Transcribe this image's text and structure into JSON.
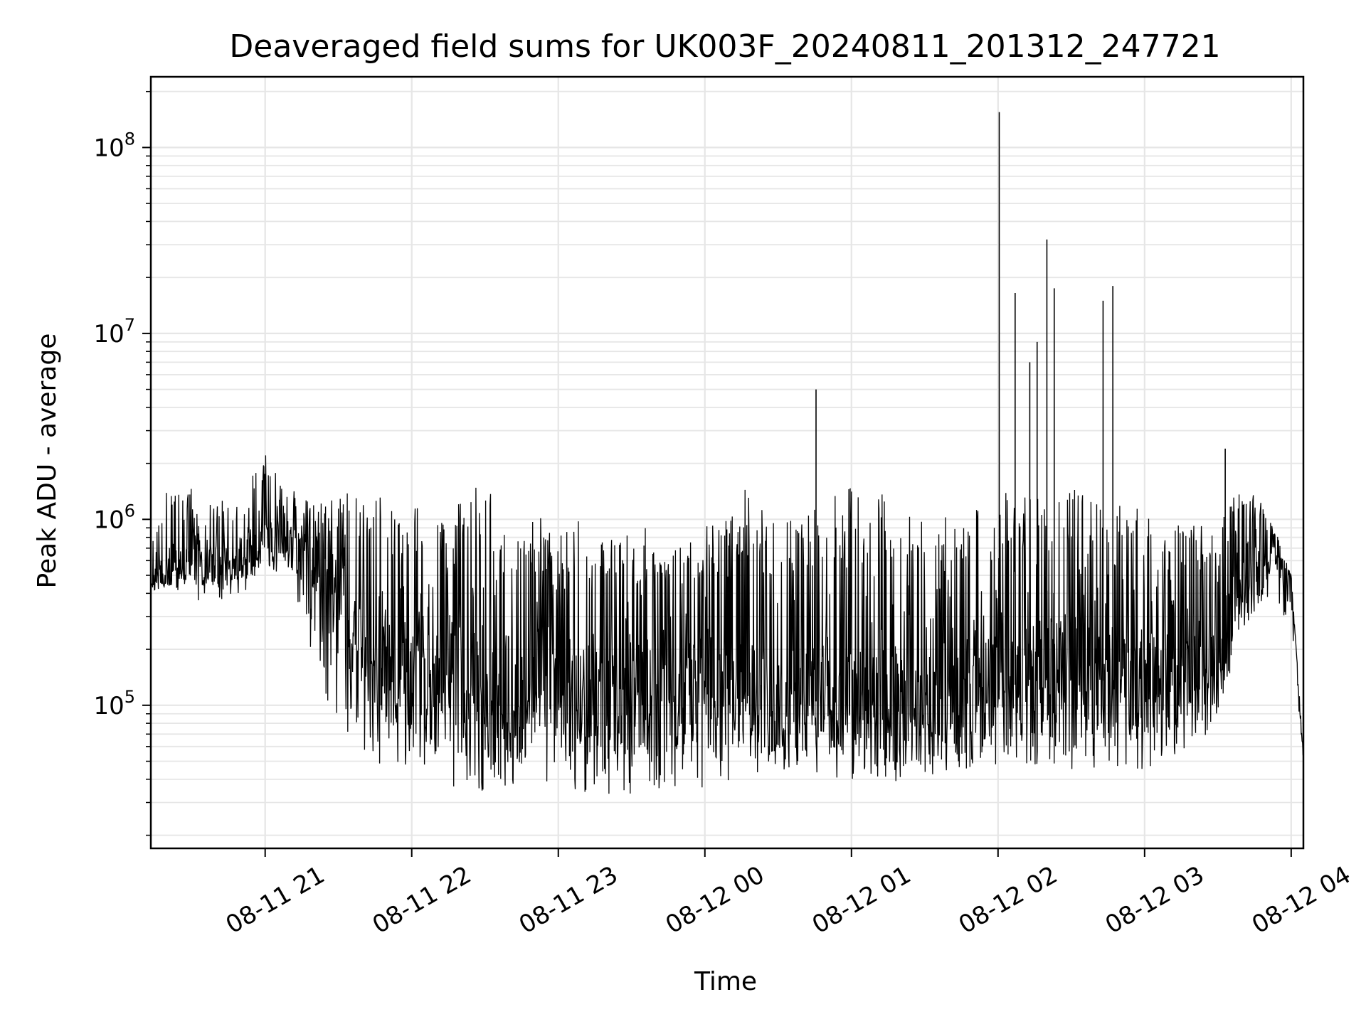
{
  "chart_data": {
    "type": "line",
    "title": "Deaveraged field sums for UK003F_20240811_201312_247721",
    "xlabel": "Time",
    "ylabel": "Peak ADU - average",
    "yscale": "log",
    "grid": true,
    "xlim": [
      "2024-08-11 20:13:12",
      "2024-08-12 04:05:00"
    ],
    "ylim": [
      17000,
      240000000
    ],
    "x_ticks": [
      {
        "label": "08-11 21",
        "time": "2024-08-11 21:00:00"
      },
      {
        "label": "08-11 22",
        "time": "2024-08-11 22:00:00"
      },
      {
        "label": "08-11 23",
        "time": "2024-08-11 23:00:00"
      },
      {
        "label": "08-12 00",
        "time": "2024-08-12 00:00:00"
      },
      {
        "label": "08-12 01",
        "time": "2024-08-12 01:00:00"
      },
      {
        "label": "08-12 02",
        "time": "2024-08-12 02:00:00"
      },
      {
        "label": "08-12 03",
        "time": "2024-08-12 03:00:00"
      },
      {
        "label": "08-12 04",
        "time": "2024-08-12 04:00:00"
      }
    ],
    "y_ticks": [
      {
        "base": "10",
        "exp": "5",
        "value": 100000
      },
      {
        "base": "10",
        "exp": "6",
        "value": 1000000
      },
      {
        "base": "10",
        "exp": "7",
        "value": 10000000
      },
      {
        "base": "10",
        "exp": "8",
        "value": 100000000
      }
    ],
    "series": [
      {
        "color": "#000000",
        "x": [
          "2024-08-11 20:13:12",
          "2024-08-11 20:20:00",
          "2024-08-11 20:30:00",
          "2024-08-11 20:40:00",
          "2024-08-11 20:50:00",
          "2024-08-11 21:00:00",
          "2024-08-11 21:10:00",
          "2024-08-11 21:20:00",
          "2024-08-11 21:30:00",
          "2024-08-11 21:40:00",
          "2024-08-11 21:50:00",
          "2024-08-11 22:00:00",
          "2024-08-11 22:15:00",
          "2024-08-11 22:30:00",
          "2024-08-11 22:45:00",
          "2024-08-11 23:00:00",
          "2024-08-11 23:15:00",
          "2024-08-11 23:30:00",
          "2024-08-11 23:45:00",
          "2024-08-12 00:00:00",
          "2024-08-12 00:15:00",
          "2024-08-12 00:30:00",
          "2024-08-12 00:45:00",
          "2024-08-12 01:00:00",
          "2024-08-12 01:15:00",
          "2024-08-12 01:30:00",
          "2024-08-12 01:45:00",
          "2024-08-12 02:00:00",
          "2024-08-12 02:15:00",
          "2024-08-12 02:30:00",
          "2024-08-12 02:45:00",
          "2024-08-12 03:00:00",
          "2024-08-12 03:15:00",
          "2024-08-12 03:30:00",
          "2024-08-12 03:40:00",
          "2024-08-12 03:50:00",
          "2024-08-12 04:00:00",
          "2024-08-12 04:05:00"
        ],
        "center": [
          500000,
          550000,
          600000,
          580000,
          620000,
          750000,
          800000,
          550000,
          350000,
          200000,
          160000,
          140000,
          130000,
          120000,
          115000,
          115000,
          110000,
          110000,
          105000,
          110000,
          110000,
          110000,
          105000,
          100000,
          100000,
          95000,
          100000,
          120000,
          140000,
          140000,
          135000,
          130000,
          140000,
          180000,
          380000,
          650000,
          500000,
          50000
        ],
        "low": [
          400000,
          420000,
          350000,
          320000,
          350000,
          500000,
          500000,
          150000,
          60000,
          45000,
          40000,
          38000,
          32000,
          30000,
          30000,
          30000,
          28000,
          28000,
          28000,
          30000,
          38000,
          38000,
          38000,
          35000,
          34000,
          38000,
          40000,
          42000,
          40000,
          38000,
          40000,
          40000,
          45000,
          70000,
          250000,
          350000,
          250000,
          45000
        ],
        "high": [
          800000,
          1700000,
          1500000,
          1400000,
          1300000,
          2400000,
          1500000,
          1300000,
          1500000,
          1300000,
          1400000,
          1200000,
          1100000,
          2000000,
          1000000,
          1100000,
          1000000,
          950000,
          900000,
          900000,
          1700000,
          1000000,
          1300000,
          1500000,
          1500000,
          1000000,
          1200000,
          1400000,
          1500000,
          1600000,
          1400000,
          1300000,
          1200000,
          1100000,
          1500000,
          1200000,
          500000,
          55000
        ]
      }
    ],
    "spikes": [
      {
        "x": "2024-08-12 00:45:30",
        "y": 5000000
      },
      {
        "x": "2024-08-12 02:00:30",
        "y": 155000000
      },
      {
        "x": "2024-08-12 02:07:00",
        "y": 16500000
      },
      {
        "x": "2024-08-12 02:13:00",
        "y": 7000000
      },
      {
        "x": "2024-08-12 02:16:00",
        "y": 9000000
      },
      {
        "x": "2024-08-12 02:20:00",
        "y": 32000000
      },
      {
        "x": "2024-08-12 02:23:00",
        "y": 17500000
      },
      {
        "x": "2024-08-12 02:43:00",
        "y": 15000000
      },
      {
        "x": "2024-08-12 02:47:00",
        "y": 18000000
      },
      {
        "x": "2024-08-12 03:33:00",
        "y": 2400000
      }
    ]
  }
}
